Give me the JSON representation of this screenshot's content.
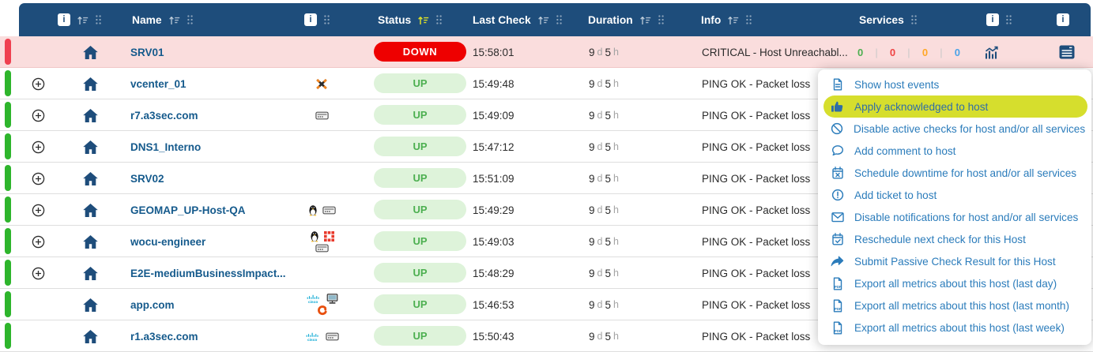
{
  "header": {
    "info_badge": "i",
    "columns": {
      "name": "Name",
      "status": "Status",
      "last_check": "Last Check",
      "duration": "Duration",
      "info": "Info",
      "services": "Services"
    },
    "active_sort_column": "Status"
  },
  "rows": [
    {
      "name": "SRV01",
      "state": "down",
      "expandable": false,
      "os_icons": [],
      "status": "DOWN",
      "last_check": "15:58:01",
      "duration": {
        "days": "9",
        "days_unit": "d",
        "hours": "5",
        "hours_unit": "h"
      },
      "info": "CRITICAL - Host Unreachabl...",
      "services": {
        "ok": "0",
        "critical": "0",
        "warning": "0",
        "unknown": "0"
      }
    },
    {
      "name": "vcenter_01",
      "state": "up",
      "expandable": true,
      "os_icons": [
        [
          "xen-icon"
        ]
      ],
      "status": "UP",
      "last_check": "15:49:48",
      "duration": {
        "days": "9",
        "days_unit": "d",
        "hours": "5",
        "hours_unit": "h"
      },
      "info": "PING OK - Packet loss",
      "services": null
    },
    {
      "name": "r7.a3sec.com",
      "state": "up",
      "expandable": true,
      "os_icons": [
        [
          "drive-icon"
        ]
      ],
      "status": "UP",
      "last_check": "15:49:09",
      "duration": {
        "days": "9",
        "days_unit": "d",
        "hours": "5",
        "hours_unit": "h"
      },
      "info": "PING OK - Packet loss",
      "services": null
    },
    {
      "name": "DNS1_Interno",
      "state": "up",
      "expandable": true,
      "os_icons": [],
      "status": "UP",
      "last_check": "15:47:12",
      "duration": {
        "days": "9",
        "days_unit": "d",
        "hours": "5",
        "hours_unit": "h"
      },
      "info": "PING OK - Packet loss",
      "services": null
    },
    {
      "name": "SRV02",
      "state": "up",
      "expandable": true,
      "os_icons": [],
      "status": "UP",
      "last_check": "15:51:09",
      "duration": {
        "days": "9",
        "days_unit": "d",
        "hours": "5",
        "hours_unit": "h"
      },
      "info": "PING OK - Packet loss",
      "services": null
    },
    {
      "name": "GEOMAP_UP-Host-QA",
      "state": "up",
      "expandable": true,
      "os_icons": [
        [
          "penguin-icon",
          "drive-icon"
        ]
      ],
      "status": "UP",
      "last_check": "15:49:29",
      "duration": {
        "days": "9",
        "days_unit": "d",
        "hours": "5",
        "hours_unit": "h"
      },
      "info": "PING OK - Packet loss",
      "services": null
    },
    {
      "name": "wocu-engineer",
      "state": "up",
      "expandable": true,
      "os_icons": [
        [
          "penguin-icon",
          "red-grid-icon"
        ],
        [
          "drive-icon"
        ]
      ],
      "status": "UP",
      "last_check": "15:49:03",
      "duration": {
        "days": "9",
        "days_unit": "d",
        "hours": "5",
        "hours_unit": "h"
      },
      "info": "PING OK - Packet loss",
      "services": null
    },
    {
      "name": "E2E-mediumBusinessImpact...",
      "state": "up",
      "expandable": true,
      "os_icons": [],
      "status": "UP",
      "last_check": "15:48:29",
      "duration": {
        "days": "9",
        "days_unit": "d",
        "hours": "5",
        "hours_unit": "h"
      },
      "info": "PING OK - Packet loss",
      "services": null
    },
    {
      "name": "app.com",
      "state": "up",
      "expandable": false,
      "os_icons": [
        [
          "cisco-icon",
          "workstation-icon"
        ],
        [
          "swirl-icon"
        ]
      ],
      "status": "UP",
      "last_check": "15:46:53",
      "duration": {
        "days": "9",
        "days_unit": "d",
        "hours": "5",
        "hours_unit": "h"
      },
      "info": "PING OK - Packet loss",
      "services": null
    },
    {
      "name": "r1.a3sec.com",
      "state": "up",
      "expandable": false,
      "os_icons": [
        [
          "cisco-icon",
          "drive-icon"
        ]
      ],
      "status": "UP",
      "last_check": "15:50:43",
      "duration": {
        "days": "9",
        "days_unit": "d",
        "hours": "5",
        "hours_unit": "h"
      },
      "info": "PING OK - Packet loss",
      "services": null
    }
  ],
  "context_menu": {
    "items": [
      {
        "icon": "file-lines-icon",
        "label": "Show host events",
        "highlighted": false
      },
      {
        "icon": "thumbs-up-icon",
        "label": "Apply acknowledged to host",
        "highlighted": true
      },
      {
        "icon": "ban-icon",
        "label": "Disable active checks for host and/or all services",
        "highlighted": false
      },
      {
        "icon": "comment-icon",
        "label": "Add comment to host",
        "highlighted": false
      },
      {
        "icon": "calendar-x-icon",
        "label": "Schedule downtime for host and/or all services",
        "highlighted": false
      },
      {
        "icon": "circle-exclamation-icon",
        "label": "Add ticket to host",
        "highlighted": false
      },
      {
        "icon": "envelope-icon",
        "label": "Disable notifications for host and/or all services",
        "highlighted": false
      },
      {
        "icon": "calendar-check-icon",
        "label": "Reschedule next check for this Host",
        "highlighted": false
      },
      {
        "icon": "share-arrow-icon",
        "label": "Submit Passive Check Result for this Host",
        "highlighted": false
      },
      {
        "icon": "file-pdf-icon",
        "label": "Export all metrics about this host (last day)",
        "highlighted": false
      },
      {
        "icon": "file-pdf-icon",
        "label": "Export all metrics about this host (last month)",
        "highlighted": false
      },
      {
        "icon": "file-pdf-icon",
        "label": "Export all metrics about this host (last week)",
        "highlighted": false
      }
    ]
  },
  "colors": {
    "header_bg": "#1e4d7b",
    "active_sort": "#dce02a",
    "down_badge_bg": "#ee0000",
    "up_badge_bg": "#def3da",
    "up_badge_text": "#4caf50",
    "row_down_bg": "#fadddd",
    "bar_down": "#ef4050",
    "bar_up": "#2eb52c",
    "name_link": "#155a8c",
    "menu_text": "#2b7cbb",
    "menu_highlight_bg": "#d6de2d",
    "svc_ok": "#4caf50",
    "svc_critical": "#ef4444",
    "svc_warning": "#ffa726",
    "svc_unknown": "#4aa3e8"
  }
}
